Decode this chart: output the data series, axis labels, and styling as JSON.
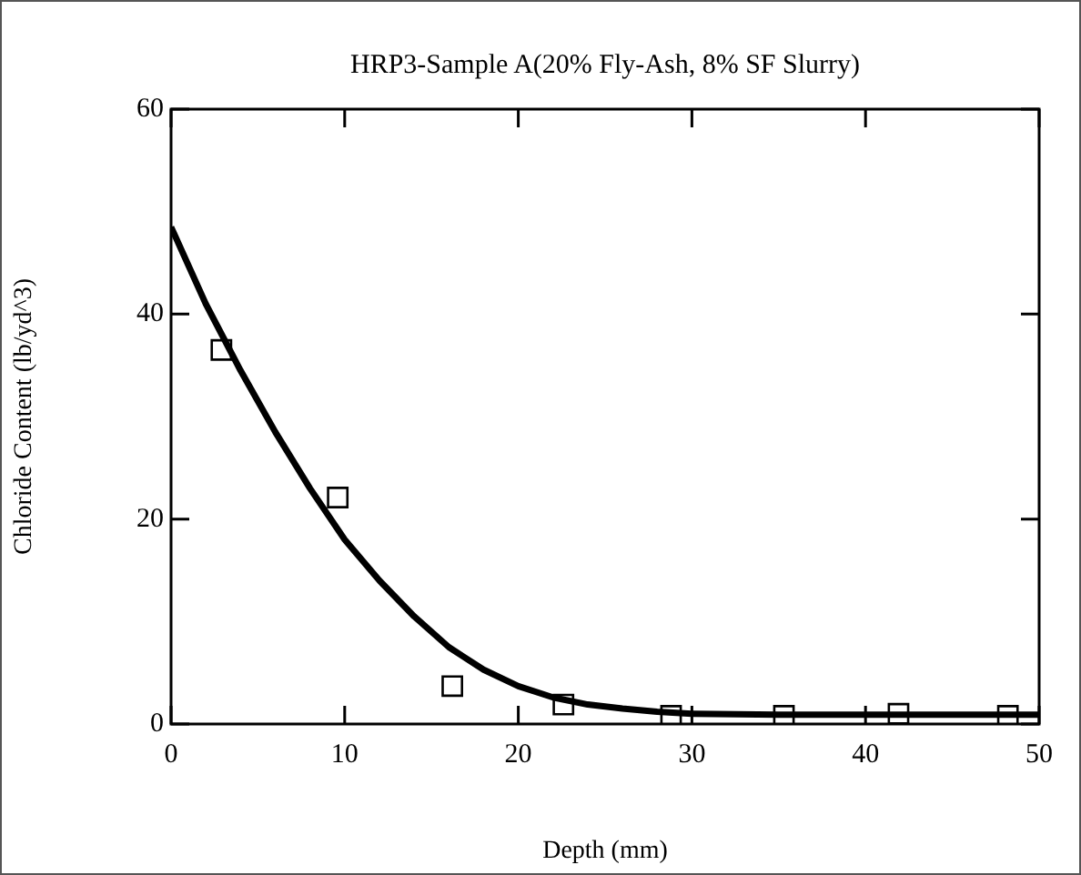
{
  "chart_data": {
    "type": "scatter",
    "title": "HRP3-Sample A(20% Fly-Ash, 8% SF Slurry)",
    "xlabel": "Depth (mm)",
    "ylabel": "Chloride Content (lb/yd^3)",
    "xlim": [
      0,
      50
    ],
    "xticks": [
      0,
      10,
      20,
      30,
      40,
      50
    ],
    "ylim": [
      0,
      60
    ],
    "yticks": [
      0,
      20,
      40,
      60
    ],
    "grid": false,
    "legend": false,
    "series": [
      {
        "marker": "square",
        "color": "#000000",
        "x": [
          2.9,
          9.6,
          16.2,
          22.6,
          28.8,
          35.3,
          41.9,
          48.2
        ],
        "values": [
          36.5,
          22.1,
          3.7,
          1.9,
          0.8,
          0.8,
          1.0,
          0.8
        ]
      },
      {
        "type": "line",
        "marker": "none",
        "color": "#000000",
        "x": [
          0,
          2,
          4,
          6,
          8,
          10,
          12,
          14,
          16,
          18,
          20,
          22,
          24,
          26,
          28,
          30,
          35,
          40,
          50
        ],
        "values": [
          48.5,
          41,
          34.5,
          28.5,
          23,
          18,
          14,
          10.5,
          7.5,
          5.3,
          3.7,
          2.6,
          1.9,
          1.5,
          1.2,
          1.0,
          0.9,
          0.9,
          0.9
        ]
      }
    ]
  }
}
